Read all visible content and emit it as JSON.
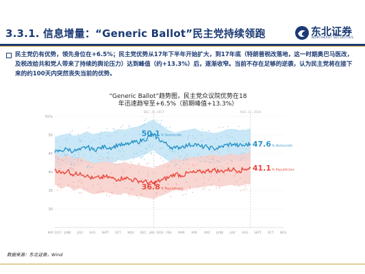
{
  "header": {
    "title": "3.3.1. 信息增量：“Generic Ballot”民主党持续领跑",
    "logo_text": "东北证券",
    "logo_sub": "NORTHEAST SECURITIES"
  },
  "body_text": "民主党仍有优势，领先身位在+6.5%；民主党优势从17年下半年开始扩大，到17年底（特朗普税改落地，这一时期奥巴马医改，及税改给共和党人带来了持续的舆论压力）达到峰值（约+13.3%）后，逐渐收窄。当前不存在足够的逆袭，认为民主党将在接下来的约100天内突然丧失当前的优势。",
  "chart_title_line1": "“Generic Ballot”趋势图，民主党众议院优势在18",
  "chart_title_line2": "年迅速趋窄至+6.5%（前期峰值+13.3%）",
  "source": "数据来源：东北证券，Wind",
  "colors": {
    "democrats": "#2a93c9",
    "republicans": "#e8463a",
    "dem_band": "#bfe3f4",
    "rep_band": "#f7cfca",
    "brand": "#1b3a73",
    "gold": "#c9a43a"
  },
  "chart_data": {
    "type": "line",
    "x_tick_labels": [
      "MAY 2017",
      "JUNE",
      "JULY",
      "AUG.",
      "SEPT.",
      "OCT.",
      "NOV.",
      "DEC.",
      "JAN. 2018",
      "FEB.",
      "MAR.",
      "APR.",
      "MAY",
      "JUNE",
      "JULY",
      "AUG.",
      "SEPT.",
      "OCT.",
      "NOV."
    ],
    "x_months": [
      0,
      1,
      2,
      3,
      4,
      5,
      6,
      7,
      8,
      9,
      10,
      11,
      12,
      13,
      14,
      15,
      16,
      17,
      18
    ],
    "ylim": [
      25,
      55
    ],
    "y_ticks": [
      25,
      30,
      35,
      40,
      45,
      50,
      55
    ],
    "y_tick_labels": [
      "",
      "30",
      "35",
      "40",
      "45",
      "50",
      "55%"
    ],
    "x_data_end": 15.4,
    "annotations": [
      {
        "label": "DEC. 26, 2017",
        "x": 7.8
      },
      {
        "label": "AUG. 12, 2018",
        "x": 15.4
      }
    ],
    "peak_labels": [
      {
        "series": "Democrats",
        "value": "50.1",
        "suffix": "% Democrats",
        "x": 7.8
      },
      {
        "series": "Republicans",
        "value": "36.8",
        "suffix": "% Republicans",
        "x": 7.8
      }
    ],
    "end_labels": [
      {
        "series": "Democrats",
        "value": "47.6",
        "suffix": "% Democrats"
      },
      {
        "series": "Republicans",
        "value": "41.1",
        "suffix": "% Republicans"
      }
    ],
    "series": [
      {
        "name": "Democrats",
        "x": [
          0,
          0.5,
          1,
          1.5,
          2,
          2.5,
          3,
          3.5,
          4,
          4.5,
          5,
          5.5,
          6,
          6.5,
          7,
          7.5,
          7.8,
          8,
          8.5,
          9,
          9.5,
          10,
          10.5,
          11,
          11.5,
          12,
          12.5,
          13,
          13.5,
          14,
          14.5,
          15,
          15.4
        ],
        "values": [
          45.3,
          45.8,
          46.2,
          45.6,
          45.9,
          46.8,
          46.0,
          46.4,
          46.8,
          46.6,
          47.4,
          47.2,
          47.8,
          48.1,
          48.7,
          49.6,
          50.1,
          49.3,
          48.2,
          47.0,
          46.4,
          46.9,
          47.2,
          47.6,
          46.8,
          46.7,
          46.3,
          46.6,
          47.3,
          47.5,
          47.1,
          47.2,
          47.6
        ]
      },
      {
        "name": "Republicans",
        "x": [
          0,
          0.5,
          1,
          1.5,
          2,
          2.5,
          3,
          3.5,
          4,
          4.5,
          5,
          5.5,
          6,
          6.5,
          7,
          7.5,
          7.8,
          8,
          8.5,
          9,
          9.5,
          10,
          10.5,
          11,
          11.5,
          12,
          12.5,
          13,
          13.5,
          14,
          14.5,
          15,
          15.4
        ],
        "values": [
          40.8,
          39.6,
          40.4,
          39.2,
          39.8,
          38.9,
          38.2,
          38.4,
          38.7,
          38.3,
          38.0,
          38.5,
          37.9,
          37.7,
          37.4,
          37.1,
          36.8,
          37.3,
          37.9,
          38.6,
          39.5,
          39.0,
          39.7,
          39.8,
          40.0,
          40.3,
          40.6,
          40.1,
          40.5,
          40.7,
          40.3,
          40.8,
          41.1
        ]
      }
    ]
  }
}
